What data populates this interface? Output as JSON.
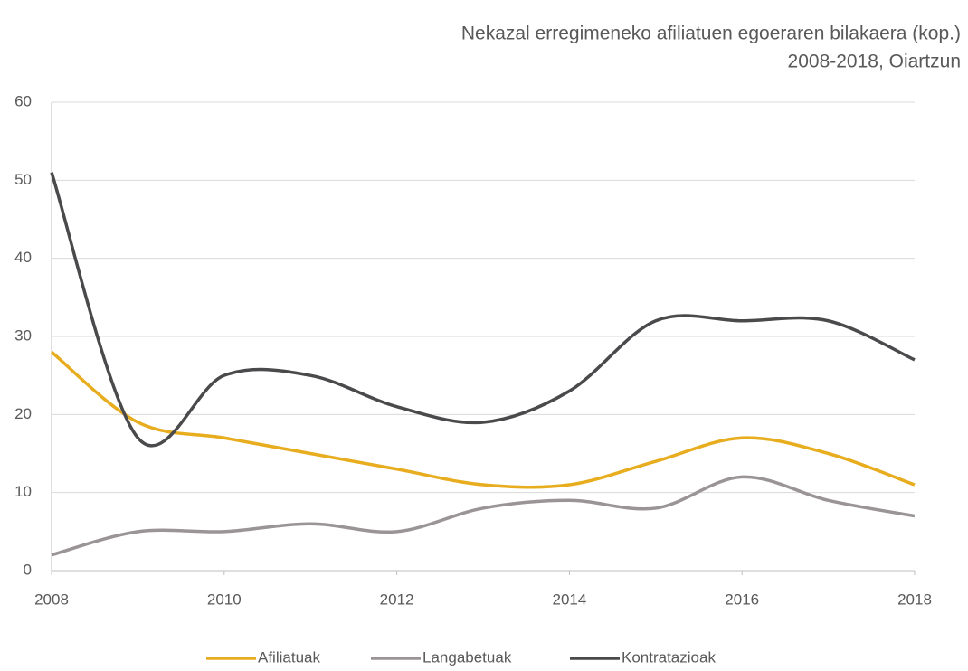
{
  "chart_data": {
    "type": "line",
    "title": "Nekazal erregimeneko afiliatuen egoeraren bilakaera (kop.)",
    "subtitle": "2008-2018, Oiartzun",
    "x": [
      2008,
      2009,
      2010,
      2011,
      2012,
      2013,
      2014,
      2015,
      2016,
      2017,
      2018
    ],
    "series": [
      {
        "name": "Afiliatuak",
        "color": "#e8ad1f",
        "values": [
          28,
          19,
          17,
          15,
          13,
          11,
          11,
          14,
          17,
          15,
          11
        ]
      },
      {
        "name": "Langabetuak",
        "color": "#9b9496",
        "values": [
          2,
          5,
          5,
          6,
          5,
          8,
          9,
          8,
          12,
          9,
          7
        ]
      },
      {
        "name": "Kontratazioak",
        "color": "#4a4a4c",
        "values": [
          51,
          17,
          25,
          25,
          21,
          19,
          23,
          32,
          32,
          32,
          27
        ]
      }
    ],
    "xlim": [
      2008,
      2018
    ],
    "xticks": [
      2008,
      2010,
      2012,
      2014,
      2016,
      2018
    ],
    "ylim": [
      0,
      60
    ],
    "yticks": [
      0,
      10,
      20,
      30,
      40,
      50,
      60
    ],
    "grid": true,
    "legend": "bottom",
    "smooth": true
  }
}
